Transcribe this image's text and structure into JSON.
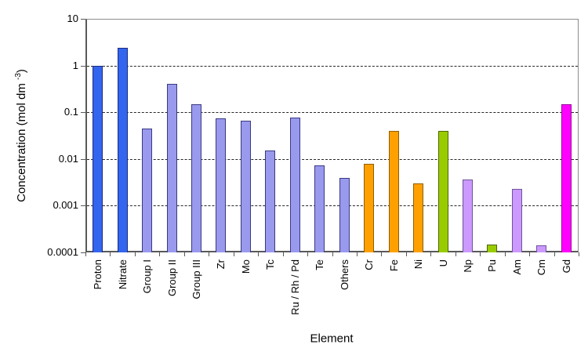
{
  "chart_data": {
    "type": "bar",
    "title": "",
    "xlabel": "Element",
    "ylabel": {
      "main": "Concentration (mol dm ",
      "sup": "-3",
      "end": ")"
    },
    "yscale": "log",
    "ylim": [
      0.0001,
      10
    ],
    "grid": "horizontal-dashed-major-decades",
    "legend": "none",
    "yticks": [
      {
        "label": "10",
        "value": 10
      },
      {
        "label": "1",
        "value": 1
      },
      {
        "label": "0.1",
        "value": 0.1
      },
      {
        "label": "0.01",
        "value": 0.01
      },
      {
        "label": "0.001",
        "value": 0.001
      },
      {
        "label": "0.0001",
        "value": 0.0001
      }
    ],
    "gridlines": [
      1,
      0.1,
      0.01,
      0.001
    ],
    "categories": [
      "Proton",
      "Nitrate",
      "Group I",
      "Group II",
      "Group III",
      "Zr",
      "Mo",
      "Tc",
      "Ru / Rh / Pd",
      "Te",
      "Others",
      "Cr",
      "Fe",
      "Ni",
      "U",
      "Np",
      "Pu",
      "Am",
      "Cm",
      "Gd"
    ],
    "values": [
      1.0,
      2.4,
      0.045,
      0.4,
      0.15,
      0.075,
      0.065,
      0.015,
      0.078,
      0.0072,
      0.004,
      0.008,
      0.04,
      0.003,
      0.04,
      0.0037,
      0.00015,
      0.0023,
      0.00014,
      0.15
    ],
    "palette": {
      "blue": {
        "fill": "#3366EE",
        "border": "#1F2A7F"
      },
      "periwinkle": {
        "fill": "#9999EE",
        "border": "#3A3A80"
      },
      "orange": {
        "fill": "#FFA000",
        "border": "#8F5F00"
      },
      "green": {
        "fill": "#99CC00",
        "border": "#4D6600"
      },
      "lilac": {
        "fill": "#CC99FF",
        "border": "#6F5499"
      },
      "magenta": {
        "fill": "#FF00FF",
        "border": "#990099"
      }
    },
    "bar_palette": [
      "blue",
      "blue",
      "periwinkle",
      "periwinkle",
      "periwinkle",
      "periwinkle",
      "periwinkle",
      "periwinkle",
      "periwinkle",
      "periwinkle",
      "periwinkle",
      "orange",
      "orange",
      "orange",
      "green",
      "lilac",
      "green",
      "lilac",
      "lilac",
      "magenta"
    ]
  }
}
